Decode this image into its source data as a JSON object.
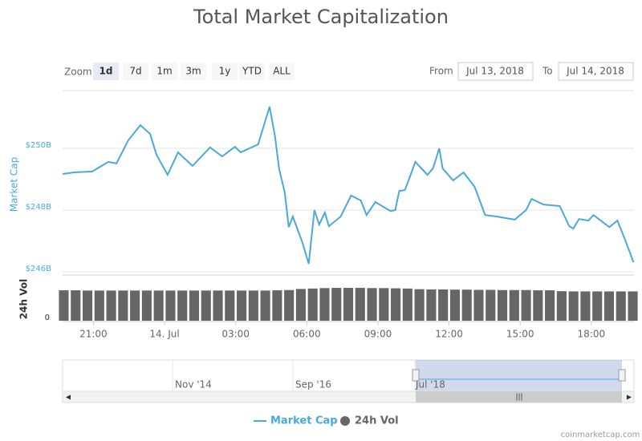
{
  "chart_data": {
    "type": "line",
    "title": "Total Market Capitalization",
    "zoom": {
      "label": "Zoom",
      "buttons": [
        "1d",
        "7d",
        "1m",
        "3m",
        "1y",
        "YTD",
        "ALL"
      ],
      "selected": "1d"
    },
    "range": {
      "from_label": "From",
      "from": "Jul 13, 2018",
      "to_label": "To",
      "to": "Jul 14, 2018"
    },
    "y_label": "Market Cap",
    "y2_label": "24h Vol",
    "xlim": [
      19.7,
      43.8
    ],
    "xticks": [
      {
        "value": 21,
        "label": "21:00"
      },
      {
        "value": 24,
        "label": "14. Jul"
      },
      {
        "value": 27,
        "label": "03:00"
      },
      {
        "value": 30,
        "label": "06:00"
      },
      {
        "value": 33,
        "label": "09:00"
      },
      {
        "value": 36,
        "label": "12:00"
      },
      {
        "value": 39,
        "label": "15:00"
      },
      {
        "value": 42,
        "label": "18:00"
      }
    ],
    "ylim": [
      246,
      251.87
    ],
    "yticks": [
      {
        "value": 246,
        "label": "$246B"
      },
      {
        "value": 248,
        "label": "$248B"
      },
      {
        "value": 250,
        "label": "$250B"
      }
    ],
    "y2lim": [
      0,
      20
    ],
    "y2ticks": [
      0
    ],
    "grid": true,
    "series": [
      {
        "name": "Market Cap",
        "color": "#4aa9dc",
        "x": [
          19.7,
          20.17,
          20.95,
          21.63,
          21.97,
          22.47,
          22.98,
          23.39,
          23.66,
          24.13,
          24.57,
          25.18,
          25.92,
          26.43,
          26.97,
          27.21,
          27.95,
          28.43,
          28.66,
          28.83,
          29.07,
          29.24,
          29.41,
          29.81,
          30.08,
          30.32,
          30.52,
          30.76,
          30.93,
          31.43,
          31.87,
          32.28,
          32.52,
          32.89,
          33.53,
          33.73,
          33.9,
          34.14,
          34.58,
          35.09,
          35.32,
          35.59,
          35.73,
          36.17,
          36.61,
          37.08,
          37.52,
          38.03,
          38.77,
          39.25,
          39.48,
          39.99,
          40.67,
          41.07,
          41.24,
          41.48,
          41.88,
          42.09,
          42.76,
          43.1,
          43.44,
          43.78
        ],
        "values": [
          249.17,
          249.22,
          249.25,
          249.56,
          249.51,
          250.26,
          250.75,
          250.47,
          249.79,
          249.14,
          249.87,
          249.43,
          250.03,
          249.74,
          250.05,
          249.87,
          250.13,
          251.35,
          250.39,
          249.35,
          248.57,
          247.45,
          247.79,
          246.96,
          246.26,
          248.0,
          247.53,
          247.92,
          247.48,
          247.79,
          248.47,
          248.31,
          247.84,
          248.26,
          247.97,
          248.0,
          248.62,
          248.65,
          249.56,
          249.14,
          249.35,
          250.0,
          249.35,
          248.96,
          249.22,
          248.75,
          247.84,
          247.79,
          247.69,
          248.0,
          248.36,
          248.18,
          248.13,
          247.48,
          247.4,
          247.71,
          247.66,
          247.84,
          247.45,
          247.66,
          247.01,
          246.31
        ]
      },
      {
        "name": "24h Vol",
        "color": "#666666",
        "axis": "y2",
        "x": [
          19.75,
          20.25,
          20.75,
          21.25,
          21.75,
          22.25,
          22.75,
          23.25,
          23.75,
          24.25,
          24.75,
          25.25,
          25.75,
          26.25,
          26.75,
          27.25,
          27.75,
          28.25,
          28.75,
          29.25,
          29.75,
          30.25,
          30.75,
          31.25,
          31.75,
          32.25,
          32.75,
          33.25,
          33.75,
          34.25,
          34.75,
          35.25,
          35.75,
          36.25,
          36.75,
          37.25,
          37.75,
          38.25,
          38.75,
          39.25,
          39.75,
          40.25,
          40.75,
          41.25,
          41.75,
          42.25,
          42.75,
          43.25,
          43.75
        ],
        "values": [
          13.8,
          13.8,
          13.7,
          13.7,
          13.7,
          13.7,
          13.7,
          13.7,
          13.7,
          13.7,
          13.7,
          13.7,
          13.7,
          13.7,
          13.7,
          13.7,
          13.7,
          13.7,
          13.8,
          13.9,
          14.4,
          14.6,
          14.8,
          14.9,
          14.9,
          14.9,
          14.8,
          14.8,
          14.7,
          14.6,
          14.3,
          14.2,
          14.2,
          14.1,
          14.1,
          14.0,
          14.0,
          13.9,
          13.9,
          13.9,
          13.8,
          13.8,
          13.4,
          13.3,
          13.3,
          13.3,
          13.3,
          13.3,
          13.3
        ]
      }
    ],
    "navigator_labels": [
      "Nov '14",
      "Sep '16",
      "Jul '18"
    ],
    "credits": "coinmarketcap.com"
  }
}
